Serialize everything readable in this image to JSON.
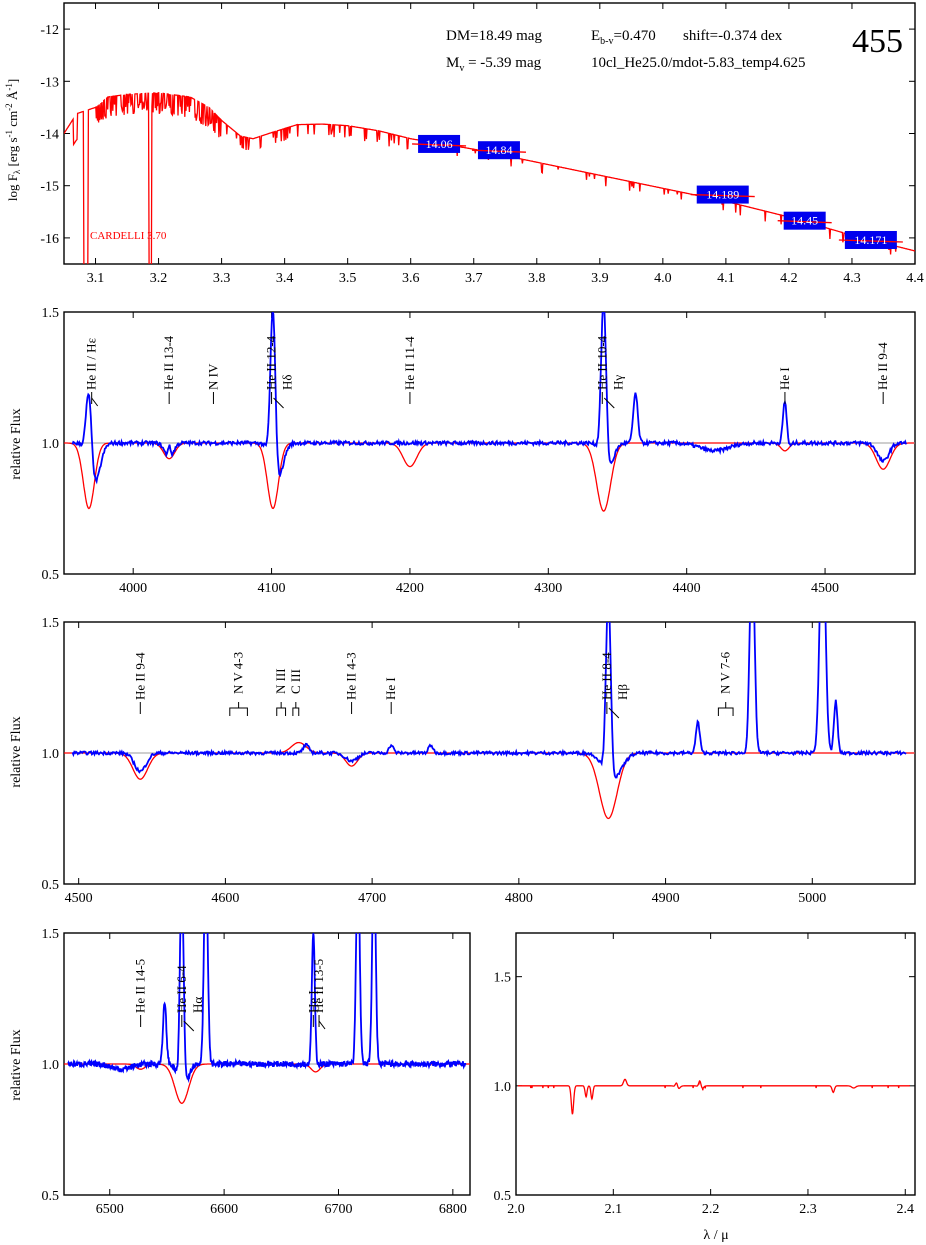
{
  "header": {
    "dm": "DM=18.49 mag",
    "mv": "M",
    "mv_sub": "v",
    "mv_value": " =  -5.39 mag",
    "ebv": "E",
    "ebv_sub": "b-v",
    "ebv_value": "=0.470",
    "shift": "shift=-0.374 dex",
    "model_name": "10cl_He25.0/mdot-5.83_temp4.625",
    "star_id": "455",
    "reddening_law": "CARDELLI 3.70"
  },
  "colors": {
    "model": "#ff0000",
    "observed": "#0000ff",
    "photometry_box": "#0000ee",
    "reference_line": "#9e9e9e"
  },
  "chart_data": [
    {
      "id": "sed",
      "type": "line",
      "ylabel": "log F",
      "xlim": [
        3.05,
        4.4
      ],
      "ylim": [
        -16.5,
        -11.5
      ],
      "xticks": [
        3.1,
        3.2,
        3.3,
        3.4,
        3.5,
        3.6,
        3.7,
        3.8,
        3.9,
        4.0,
        4.1,
        4.2,
        4.3,
        4.4
      ],
      "yticks": [
        -12,
        -13,
        -14,
        -15,
        -16
      ],
      "photometry": [
        {
          "x": 3.645,
          "y": -14.2,
          "label": "14.06"
        },
        {
          "x": 3.74,
          "y": -14.32,
          "label": "14.84"
        },
        {
          "x": 4.095,
          "y": -15.17,
          "label": "14.189"
        },
        {
          "x": 4.225,
          "y": -15.67,
          "label": "14.45"
        },
        {
          "x": 4.33,
          "y": -16.04,
          "label": "14.171"
        }
      ],
      "model_continuum": [
        [
          3.05,
          -14.0
        ],
        [
          3.07,
          -13.62
        ],
        [
          3.1,
          -13.5
        ],
        [
          3.12,
          -13.3
        ],
        [
          3.15,
          -13.25
        ],
        [
          3.2,
          -13.22
        ],
        [
          3.25,
          -13.3
        ],
        [
          3.28,
          -13.5
        ],
        [
          3.3,
          -13.75
        ],
        [
          3.33,
          -14.05
        ],
        [
          3.35,
          -14.1
        ],
        [
          3.38,
          -13.98
        ],
        [
          3.42,
          -13.83
        ],
        [
          3.46,
          -13.82
        ],
        [
          3.5,
          -13.85
        ],
        [
          3.55,
          -13.95
        ],
        [
          3.6,
          -14.1
        ],
        [
          3.7,
          -14.3
        ],
        [
          3.8,
          -14.55
        ],
        [
          3.9,
          -14.8
        ],
        [
          4.0,
          -15.05
        ],
        [
          4.1,
          -15.3
        ],
        [
          4.2,
          -15.6
        ],
        [
          4.3,
          -15.95
        ],
        [
          4.4,
          -16.25
        ]
      ]
    },
    {
      "id": "blue",
      "type": "line",
      "ylabel": "relative Flux",
      "xlim": [
        3950,
        4565
      ],
      "ylim": [
        0.5,
        1.5
      ],
      "xticks": [
        4000,
        4100,
        4200,
        4300,
        4400,
        4500
      ],
      "yticks": [
        0.5,
        1.0,
        1.5
      ],
      "line_ids": [
        {
          "x": 3970,
          "text": "He II / Hε",
          "hook": true
        },
        {
          "x": 4026,
          "text": "He II 13-4"
        },
        {
          "x": 4058,
          "text": "N IV"
        },
        {
          "x": 4100,
          "text": "He II 12-4",
          "second": "Hδ"
        },
        {
          "x": 4200,
          "text": "He II 11-4"
        },
        {
          "x": 4339,
          "text": "He II 10-4",
          "second": "Hγ"
        },
        {
          "x": 4471,
          "text": "He I"
        },
        {
          "x": 4542,
          "text": "He II 9-4"
        }
      ],
      "model_features": [
        [
          3968,
          0.25,
          4
        ],
        [
          4026,
          0.06,
          4
        ],
        [
          4101,
          0.25,
          4
        ],
        [
          4200,
          0.09,
          5
        ],
        [
          4340,
          0.26,
          5
        ],
        [
          4471,
          0.03,
          3
        ],
        [
          4542,
          0.1,
          5
        ]
      ],
      "obs_features": [
        [
          3968,
          -0.28,
          2
        ],
        [
          3972,
          0.16,
          4
        ],
        [
          4026,
          -0.05,
          1
        ],
        [
          4026,
          0.06,
          3
        ],
        [
          4101,
          -0.62,
          1.8
        ],
        [
          4104,
          0.15,
          4
        ],
        [
          4340,
          -0.62,
          1.8
        ],
        [
          4343,
          0.1,
          4
        ],
        [
          4363,
          -0.19,
          1.6
        ],
        [
          4471,
          -0.17,
          1.4
        ],
        [
          4473,
          0.02,
          2
        ],
        [
          4542,
          0.07,
          4
        ],
        [
          4420,
          0.03,
          10
        ]
      ]
    },
    {
      "id": "green",
      "type": "line",
      "ylabel": "relative Flux",
      "xlim": [
        4490,
        5070
      ],
      "ylim": [
        0.5,
        1.5
      ],
      "xticks": [
        4500,
        4600,
        4700,
        4800,
        4900,
        5000
      ],
      "yticks": [
        0.5,
        1.0,
        1.5
      ],
      "line_ids": [
        {
          "x": 4542,
          "text": "He II 9-4"
        },
        {
          "x": 4609,
          "text": "N V 4-3",
          "bracket": 12
        },
        {
          "x": 4638,
          "text": "N III",
          "bracket": 6
        },
        {
          "x": 4648,
          "text": "C III",
          "bracket": 4
        },
        {
          "x": 4686,
          "text": "He II 4-3"
        },
        {
          "x": 4713,
          "text": "He I"
        },
        {
          "x": 4860,
          "text": "He II 8-4",
          "second": "Hβ"
        },
        {
          "x": 4941,
          "text": "N V 7-6",
          "bracket": 10
        }
      ],
      "model_features": [
        [
          4542,
          0.1,
          5
        ],
        [
          4650,
          -0.04,
          5
        ],
        [
          4686,
          0.05,
          4
        ],
        [
          4861,
          0.25,
          6
        ]
      ],
      "obs_features": [
        [
          4542,
          0.07,
          4
        ],
        [
          4686,
          0.03,
          4
        ],
        [
          4713,
          -0.03,
          1.5
        ],
        [
          4740,
          -0.03,
          1.5
        ],
        [
          4861,
          -0.7,
          1.6
        ],
        [
          4864,
          0.1,
          6
        ],
        [
          4922,
          -0.12,
          1.3
        ],
        [
          4959,
          -0.8,
          1.6
        ],
        [
          5007,
          -0.9,
          1.9
        ],
        [
          5016,
          -0.2,
          1.2
        ],
        [
          4655,
          -0.03,
          2
        ]
      ]
    },
    {
      "id": "red",
      "type": "line",
      "ylabel": "relative Flux",
      "xlim": [
        6460,
        6815
      ],
      "ylim": [
        0.5,
        1.5
      ],
      "xticks": [
        6500,
        6600,
        6700,
        6800
      ],
      "yticks": [
        0.5,
        1.0,
        1.5
      ],
      "line_ids": [
        {
          "x": 6527,
          "text": "He II 14-5"
        },
        {
          "x": 6563,
          "text": "He II 6-4",
          "second": "Hα"
        },
        {
          "x": 6678,
          "text": "He I"
        },
        {
          "x": 6683,
          "text": "He II 13-5",
          "hook": true
        }
      ],
      "model_features": [
        [
          6527,
          0.02,
          4
        ],
        [
          6563,
          0.15,
          6
        ],
        [
          6680,
          0.03,
          4
        ]
      ],
      "obs_features": [
        [
          6548,
          -0.23,
          1.5
        ],
        [
          6563,
          -0.8,
          1.6
        ],
        [
          6584,
          -0.8,
          1.6
        ],
        [
          6564,
          0.1,
          4
        ],
        [
          6678,
          -0.5,
          1.3
        ],
        [
          6717,
          -0.8,
          1.5
        ],
        [
          6731,
          -0.8,
          1.5
        ],
        [
          6510,
          0.02,
          8
        ]
      ]
    },
    {
      "id": "ir",
      "type": "line",
      "xlabel": "λ / μ",
      "xlim": [
        2.0,
        2.41
      ],
      "ylim": [
        0.5,
        1.7
      ],
      "xticks": [
        2.0,
        2.1,
        2.2,
        2.3,
        2.4
      ],
      "yticks": [
        0.5,
        1.0,
        1.5
      ],
      "model_features": [
        [
          2.058,
          0.13,
          0.0012
        ],
        [
          2.072,
          0.05,
          0.001
        ],
        [
          2.078,
          0.06,
          0.001
        ],
        [
          2.112,
          -0.03,
          0.0015
        ],
        [
          2.166,
          0.02,
          0.002
        ],
        [
          2.165,
          -0.03,
          0.0012
        ],
        [
          2.189,
          -0.04,
          0.0012
        ],
        [
          2.19,
          0.02,
          0.002
        ],
        [
          2.326,
          0.03,
          0.0012
        ],
        [
          2.347,
          0.01,
          0.002
        ]
      ]
    }
  ]
}
